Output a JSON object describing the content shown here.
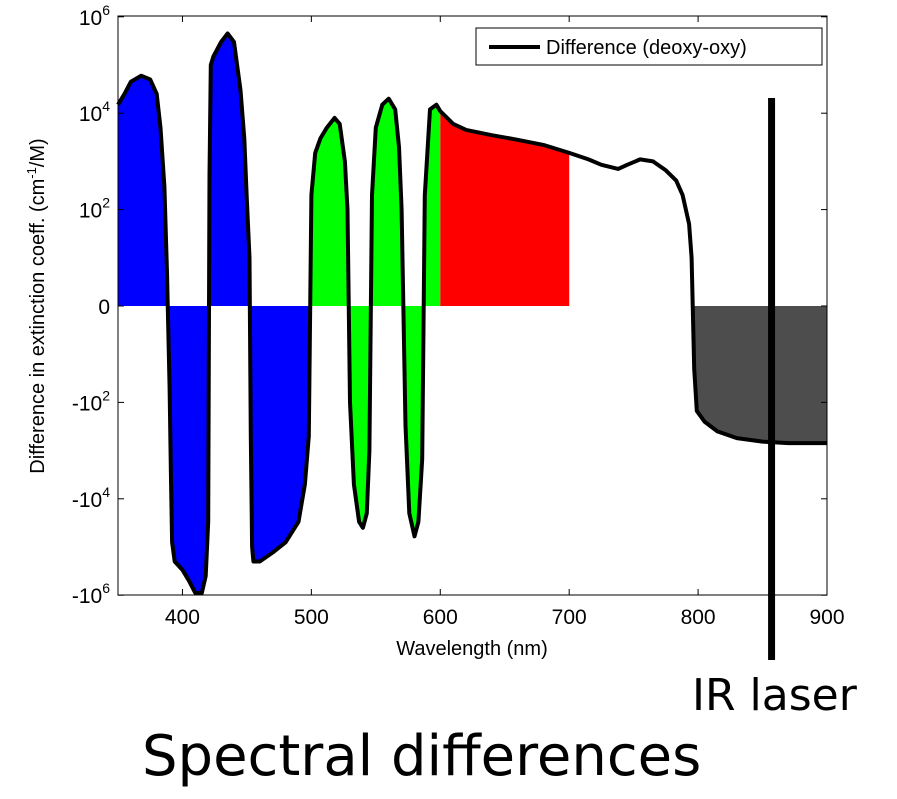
{
  "chart_data": {
    "type": "area",
    "xlabel": "Wavelength (nm)",
    "ylabel": "Difference in extinction coeff. (cm⁻¹/M)",
    "xlim": [
      350,
      900
    ],
    "x_ticks": [
      400,
      500,
      600,
      700,
      800,
      900
    ],
    "y_scale": "symmetric-log",
    "y_ticks": [
      {
        "value": -1000000,
        "base": "-10",
        "exp": "6"
      },
      {
        "value": -10000,
        "base": "-10",
        "exp": "4"
      },
      {
        "value": -100,
        "base": "-10",
        "exp": "2"
      },
      {
        "value": 0,
        "base": "0",
        "exp": ""
      },
      {
        "value": 100,
        "base": "10",
        "exp": "2"
      },
      {
        "value": 10000,
        "base": "10",
        "exp": "4"
      },
      {
        "value": 1000000,
        "base": "10",
        "exp": "6"
      }
    ],
    "grid": false,
    "legend_position": "top-right",
    "series": [
      {
        "name": "Difference (deoxy-oxy)",
        "color": "#000000",
        "points": [
          [
            350,
            15000
          ],
          [
            355,
            25000
          ],
          [
            360,
            45000
          ],
          [
            368,
            60000
          ],
          [
            375,
            50000
          ],
          [
            380,
            25000
          ],
          [
            383,
            5000
          ],
          [
            386,
            300
          ],
          [
            388,
            5
          ],
          [
            390,
            -50
          ],
          [
            391,
            -3000
          ],
          [
            392,
            -80000
          ],
          [
            394,
            -200000
          ],
          [
            400,
            -300000
          ],
          [
            405,
            -500000
          ],
          [
            410,
            -900000
          ],
          [
            415,
            -900000
          ],
          [
            418,
            -400000
          ],
          [
            420,
            -30000
          ],
          [
            421,
            500
          ],
          [
            422,
            100000
          ],
          [
            424,
            150000
          ],
          [
            430,
            300000
          ],
          [
            435,
            450000
          ],
          [
            440,
            300000
          ],
          [
            445,
            30000
          ],
          [
            448,
            3000
          ],
          [
            450,
            150
          ],
          [
            452,
            10
          ],
          [
            453,
            -500
          ],
          [
            454,
            -100000
          ],
          [
            455,
            -200000
          ],
          [
            460,
            -200000
          ],
          [
            470,
            -130000
          ],
          [
            480,
            -80000
          ],
          [
            490,
            -30000
          ],
          [
            495,
            -5000
          ],
          [
            498,
            -500
          ],
          [
            500,
            200
          ],
          [
            503,
            1500
          ],
          [
            507,
            3000
          ],
          [
            512,
            5000
          ],
          [
            518,
            8000
          ],
          [
            522,
            6000
          ],
          [
            526,
            1000
          ],
          [
            528,
            100
          ],
          [
            530,
            -100
          ],
          [
            533,
            -5000
          ],
          [
            537,
            -30000
          ],
          [
            540,
            -40000
          ],
          [
            543,
            -20000
          ],
          [
            545,
            -1000
          ],
          [
            547,
            200
          ],
          [
            550,
            5000
          ],
          [
            555,
            15000
          ],
          [
            560,
            20000
          ],
          [
            565,
            12000
          ],
          [
            568,
            2000
          ],
          [
            570,
            100
          ],
          [
            573,
            -300
          ],
          [
            576,
            -20000
          ],
          [
            580,
            -60000
          ],
          [
            583,
            -30000
          ],
          [
            586,
            -1500
          ],
          [
            588,
            200
          ],
          [
            592,
            12000
          ],
          [
            597,
            15000
          ],
          [
            600,
            11000
          ],
          [
            610,
            6000
          ],
          [
            620,
            4500
          ],
          [
            640,
            3500
          ],
          [
            660,
            2800
          ],
          [
            680,
            2200
          ],
          [
            700,
            1500
          ],
          [
            715,
            1100
          ],
          [
            725,
            850
          ],
          [
            738,
            700
          ],
          [
            745,
            850
          ],
          [
            755,
            1100
          ],
          [
            765,
            1000
          ],
          [
            775,
            650
          ],
          [
            783,
            400
          ],
          [
            788,
            200
          ],
          [
            793,
            50
          ],
          [
            795,
            10
          ],
          [
            797,
            -20
          ],
          [
            799,
            -150
          ],
          [
            805,
            -250
          ],
          [
            815,
            -400
          ],
          [
            830,
            -550
          ],
          [
            850,
            -650
          ],
          [
            870,
            -700
          ],
          [
            900,
            -700
          ]
        ]
      }
    ],
    "shaded_regions": [
      {
        "name": "blue",
        "x_range": [
          350,
          500
        ],
        "color": "#0000ff"
      },
      {
        "name": "green",
        "x_range": [
          500,
          600
        ],
        "color": "#00ff00"
      },
      {
        "name": "red",
        "x_range": [
          600,
          700
        ],
        "color": "#ff0000"
      },
      {
        "name": "gray",
        "x_range": [
          797,
          900
        ],
        "color": "#4d4d4d"
      }
    ],
    "annotations": [
      {
        "name": "IR laser",
        "type": "vertical-line",
        "x": 857,
        "color": "#000000"
      }
    ]
  },
  "callouts": {
    "ir_laser": "IR laser",
    "caption": "Spectral differences"
  }
}
